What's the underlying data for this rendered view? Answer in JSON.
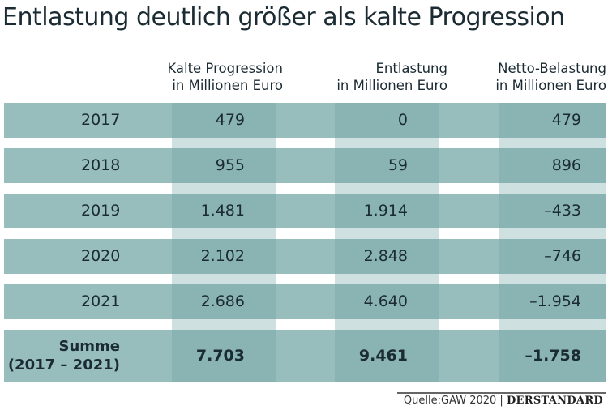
{
  "chart_data": {
    "type": "table",
    "title": "Entlastung deutlich größer als kalte Progression",
    "columns": [
      "Kalte Progression\nin Millionen Euro",
      "Entlastung\nin Millionen Euro",
      "Netto-Belastung\nin Millionen Euro"
    ],
    "rows": [
      {
        "label": "2017",
        "values": [
          "479",
          "0",
          "479"
        ]
      },
      {
        "label": "2018",
        "values": [
          "955",
          "59",
          "896"
        ]
      },
      {
        "label": "2019",
        "values": [
          "1.481",
          "1.914",
          "–433"
        ]
      },
      {
        "label": "2020",
        "values": [
          "2.102",
          "2.848",
          "–746"
        ]
      },
      {
        "label": "2021",
        "values": [
          "2.686",
          "4.640",
          "–1.954"
        ]
      }
    ],
    "total": {
      "label": "Summe\n(2017 – 2021)",
      "values": [
        "7.703",
        "9.461",
        "–1.758"
      ]
    },
    "colors": {
      "row": "#98bdbd",
      "column_highlight": "#8ab4b4",
      "column_gap": "#cfe0e0",
      "text": "#1b2b33"
    }
  },
  "footer": {
    "source": "Quelle:GAW 2020 |",
    "logo": "DERSTANDARD"
  }
}
